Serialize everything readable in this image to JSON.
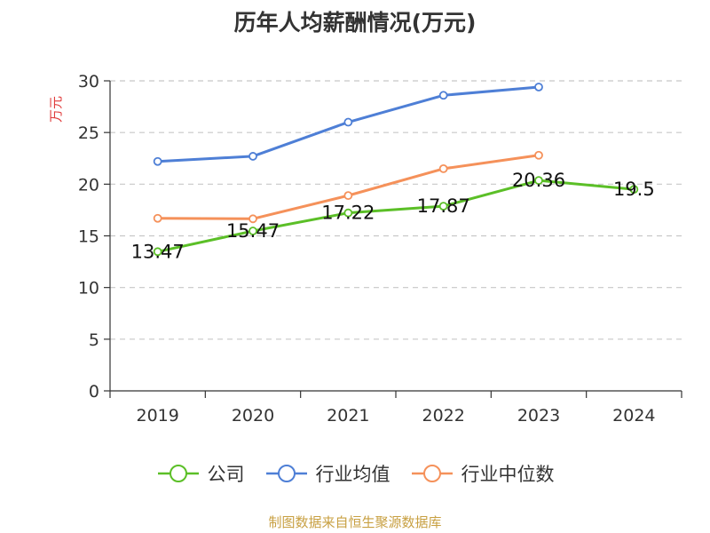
{
  "title": "历年人均薪酬情况(万元)",
  "footer": "制图数据来自恒生聚源数据库",
  "chart_data": {
    "type": "line",
    "title": "历年人均薪酬情况(万元)",
    "ylabel": "万元",
    "xlabel": "",
    "categories": [
      "2019",
      "2020",
      "2021",
      "2022",
      "2023",
      "2024"
    ],
    "ylim": [
      0,
      30
    ],
    "yticks": [
      0,
      5,
      10,
      15,
      20,
      25,
      30
    ],
    "grid": true,
    "legend_position": "bottom",
    "series": [
      {
        "name": "公司",
        "color": "#5bbf27",
        "values": [
          13.47,
          15.47,
          17.22,
          17.87,
          20.36,
          19.5
        ],
        "labels": [
          "13.47",
          "15.47",
          "17.22",
          "17.87",
          "20.36",
          "19.5"
        ]
      },
      {
        "name": "行业均值",
        "color": "#4e7fd6",
        "values": [
          22.2,
          22.7,
          26.0,
          28.6,
          29.4,
          null
        ]
      },
      {
        "name": "行业中位数",
        "color": "#f5915a",
        "values": [
          16.7,
          16.65,
          18.9,
          21.5,
          22.8,
          null
        ]
      }
    ]
  }
}
